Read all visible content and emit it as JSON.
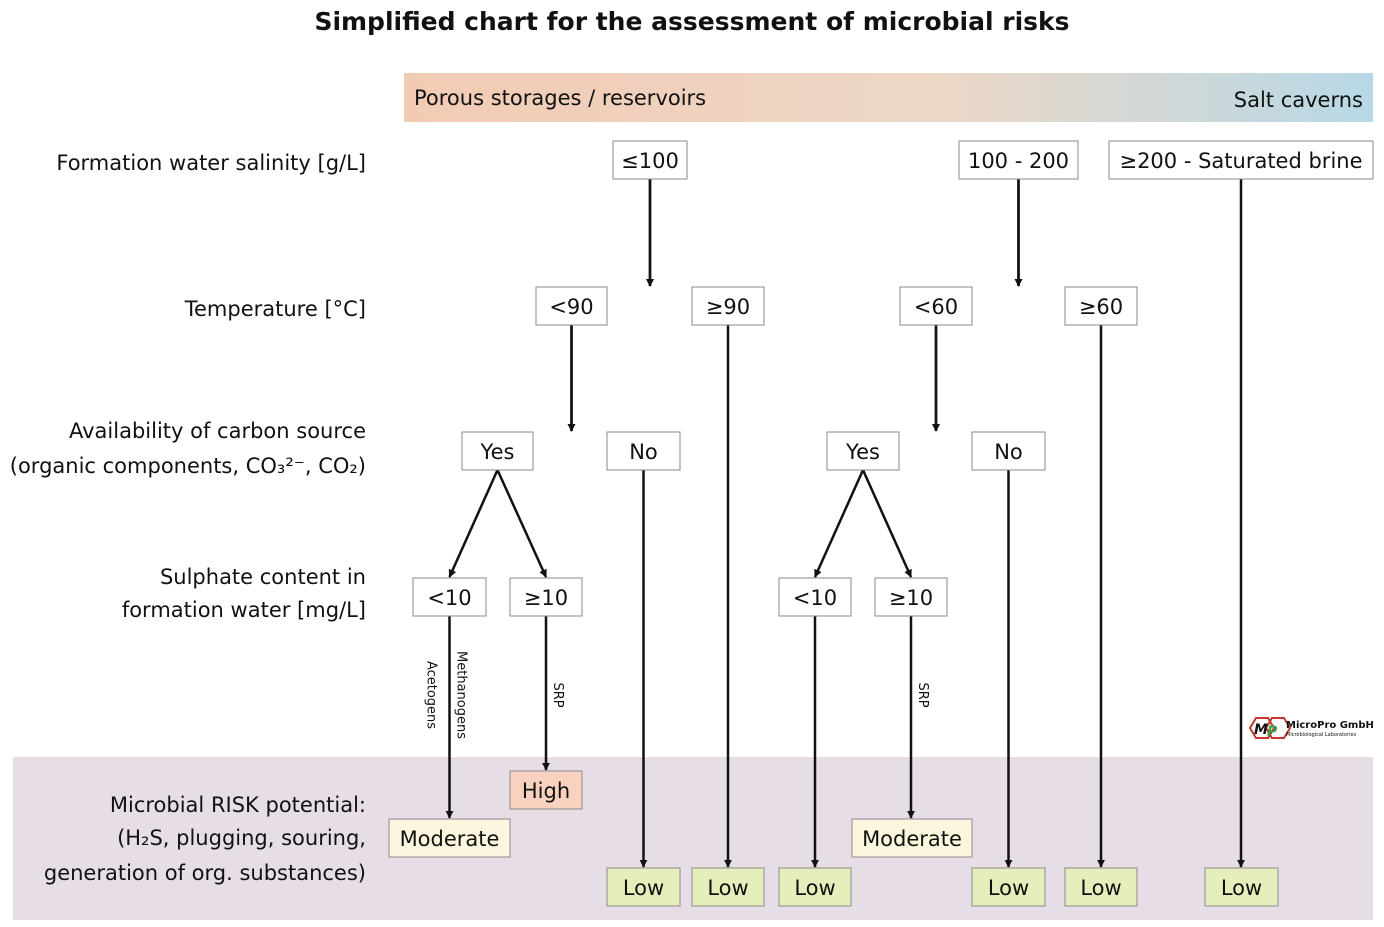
{
  "title": "Simplified chart for the assessment of microbial risks",
  "header_band": {
    "left": "Porous storages / reservoirs",
    "right": "Salt caverns",
    "color_left": "#f2cbb4",
    "color_right": "#b7d8e6"
  },
  "risk_band_color": "#e6dde6",
  "colors": {
    "box": "#ffffff",
    "low": "#e6efbb",
    "moderate": "#fbf6dd",
    "high": "#f9d2bf",
    "border": "#8a8a8a"
  },
  "row_labels": [
    {
      "lines": [
        "Formation water salinity [g/L]"
      ]
    },
    {
      "lines": [
        "Temperature [°C]"
      ]
    },
    {
      "lines": [
        "Availability of carbon source",
        "(organic components, CO₃²⁻, CO₂)"
      ]
    },
    {
      "lines": [
        "Sulphate content in",
        "formation water [mg/L]"
      ]
    },
    {
      "lines": [
        "Microbial RISK potential:",
        "(H₂S, plugging, souring,",
        "generation of org. substances)"
      ]
    }
  ],
  "nodes": {
    "s1": {
      "label": "≤100",
      "kind": "box"
    },
    "s2": {
      "label": "100 - 200",
      "kind": "box"
    },
    "s3": {
      "label": "≥200 - Saturated brine",
      "kind": "box"
    },
    "t1": {
      "label": "<90",
      "kind": "box"
    },
    "t2": {
      "label": "≥90",
      "kind": "box"
    },
    "t3": {
      "label": "<60",
      "kind": "box"
    },
    "t4": {
      "label": "≥60",
      "kind": "box"
    },
    "c1": {
      "label": "Yes",
      "kind": "box"
    },
    "c2": {
      "label": "No",
      "kind": "box"
    },
    "c3": {
      "label": "Yes",
      "kind": "box"
    },
    "c4": {
      "label": "No",
      "kind": "box"
    },
    "p1": {
      "label": "<10",
      "kind": "box"
    },
    "p2": {
      "label": "≥10",
      "kind": "box"
    },
    "p3": {
      "label": "<10",
      "kind": "box"
    },
    "p4": {
      "label": "≥10",
      "kind": "box"
    },
    "r_high": {
      "label": "High",
      "kind": "high"
    },
    "r_mod1": {
      "label": "Moderate",
      "kind": "moderate"
    },
    "r_mod2": {
      "label": "Moderate",
      "kind": "moderate"
    },
    "l1": {
      "label": "Low",
      "kind": "low"
    },
    "l2": {
      "label": "Low",
      "kind": "low"
    },
    "l3": {
      "label": "Low",
      "kind": "low"
    },
    "l4": {
      "label": "Low",
      "kind": "low"
    },
    "l5": {
      "label": "Low",
      "kind": "low"
    },
    "l6": {
      "label": "Low",
      "kind": "low"
    }
  },
  "edges": [
    {
      "from": "s1",
      "to": "t1"
    },
    {
      "from": "s1",
      "to": "t2"
    },
    {
      "from": "s2",
      "to": "t3"
    },
    {
      "from": "s2",
      "to": "t4"
    },
    {
      "from": "s3",
      "to": "l6"
    },
    {
      "from": "t1",
      "to": "c1"
    },
    {
      "from": "t1",
      "to": "c2"
    },
    {
      "from": "t2",
      "to": "l2"
    },
    {
      "from": "t3",
      "to": "c3"
    },
    {
      "from": "t3",
      "to": "c4"
    },
    {
      "from": "t4",
      "to": "l5"
    },
    {
      "from": "c1",
      "to": "p1"
    },
    {
      "from": "c1",
      "to": "p2"
    },
    {
      "from": "c2",
      "to": "l1"
    },
    {
      "from": "c3",
      "to": "p3"
    },
    {
      "from": "c3",
      "to": "p4"
    },
    {
      "from": "c4",
      "to": "l4"
    },
    {
      "from": "p1",
      "to": "r_mod1",
      "labels": [
        "Methanogens",
        "Acetogens"
      ]
    },
    {
      "from": "p2",
      "to": "r_high",
      "labels": [
        "SRP"
      ]
    },
    {
      "from": "p3",
      "to": "l3"
    },
    {
      "from": "p4",
      "to": "r_mod2",
      "labels": [
        "SRP"
      ]
    }
  ],
  "logo": {
    "initials": "MP",
    "name": "MicroPro GmbH",
    "subtitle": "Microbiological Laboratories"
  }
}
